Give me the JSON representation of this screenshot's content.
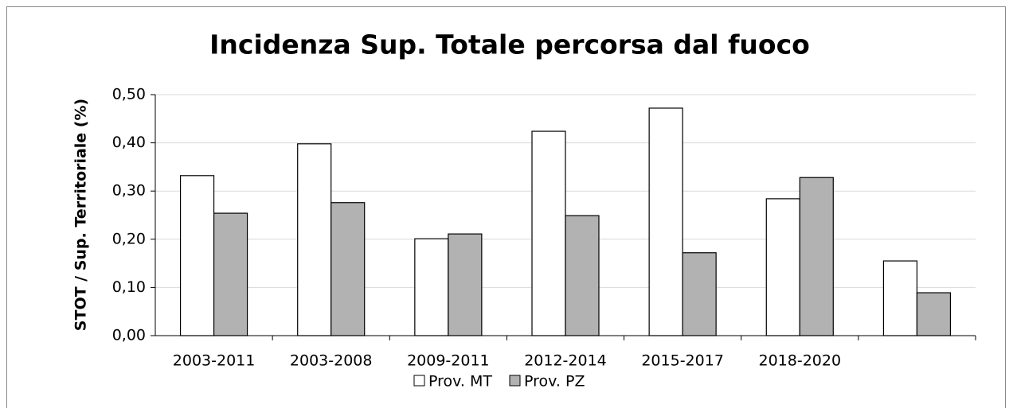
{
  "chart_data": {
    "type": "bar",
    "title": "Incidenza Sup. Totale percorsa dal fuoco",
    "y_label": "STOT / Sup. Territoriale (%)",
    "categories": [
      "2003-2011",
      "2003-2008",
      "2009-2011",
      "2012-2014",
      "2015-2017",
      "2018-2020",
      null
    ],
    "series": [
      {
        "name": "Prov. MT",
        "color": "#ffffff",
        "values": [
          0.332,
          0.398,
          0.201,
          0.424,
          0.472,
          0.284,
          0.155
        ]
      },
      {
        "name": "Prov. PZ",
        "color": "#b2b2b2",
        "values": [
          0.254,
          0.276,
          0.211,
          0.249,
          0.172,
          0.328,
          0.089
        ]
      }
    ],
    "ylim": [
      0,
      0.5
    ],
    "yticks": [
      {
        "value": 0,
        "label": "0,00"
      },
      {
        "value": 0.1,
        "label": "0,10"
      },
      {
        "value": 0.2,
        "label": "0,20"
      },
      {
        "value": 0.3,
        "label": "0,30"
      },
      {
        "value": 0.4,
        "label": "0,40"
      },
      {
        "value": 0.5,
        "label": "0,50"
      }
    ],
    "grid": true,
    "legend": "bottom"
  }
}
